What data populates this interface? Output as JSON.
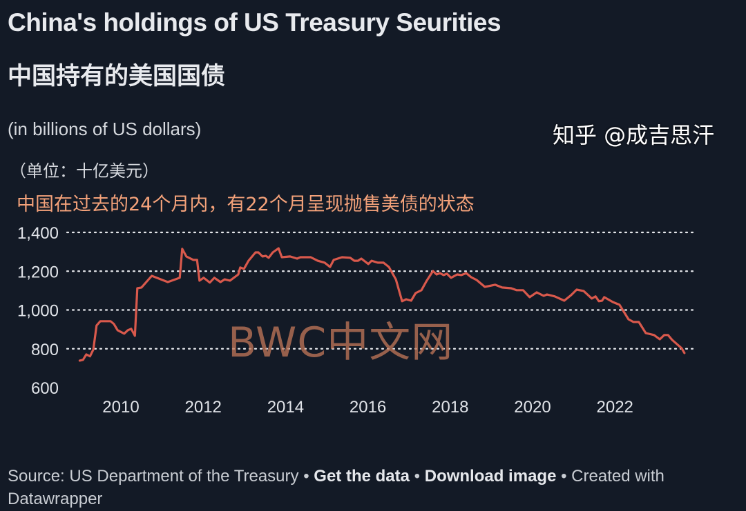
{
  "header": {
    "title": "China's holdings of US Treasury Seurities",
    "title_cn": "中国持有的美国国债",
    "subtitle": "(in billions of US dollars)",
    "unit_cn": "（单位：十亿美元）",
    "annotation_cn": "中国在过去的24个月内，有22个月呈现抛售美债的状态"
  },
  "footer": {
    "source": "Source: US Department of the Treasury",
    "sep": " • ",
    "get_data": "Get the data",
    "download": "Download image",
    "created": "Created with Datawrapper"
  },
  "watermarks": {
    "center": "BWC中文网",
    "corner": "知乎 @成吉思汗"
  },
  "colors": {
    "background": "#131a26",
    "line": "#d9594c",
    "annotation": "#f4a27a"
  },
  "chart_data": {
    "type": "line",
    "title": "China's holdings of US Treasury Seurities",
    "ylabel": "(in billions of US dollars)",
    "ylim": [
      600,
      1400
    ],
    "yticks": [
      "600",
      "800",
      "1,000",
      "1,200",
      "1,400"
    ],
    "yticks_values": [
      600,
      800,
      1000,
      1200,
      1400
    ],
    "xlim": [
      2008.5,
      2024.2
    ],
    "xticks": [
      "2010",
      "2012",
      "2014",
      "2016",
      "2018",
      "2020",
      "2022"
    ],
    "xticks_values": [
      2010,
      2012,
      2014,
      2016,
      2018,
      2020,
      2022
    ],
    "grid": "horizontal dotted",
    "series": [
      {
        "color": "#d9594c",
        "points": [
          [
            2009.0,
            739
          ],
          [
            2009.08,
            743
          ],
          [
            2009.16,
            771
          ],
          [
            2009.25,
            761
          ],
          [
            2009.33,
            796
          ],
          [
            2009.41,
            920
          ],
          [
            2009.5,
            942
          ],
          [
            2009.75,
            942
          ],
          [
            2009.83,
            928
          ],
          [
            2009.92,
            896
          ],
          [
            2010.08,
            878
          ],
          [
            2010.17,
            896
          ],
          [
            2010.25,
            903
          ],
          [
            2010.34,
            867
          ],
          [
            2010.4,
            1112
          ],
          [
            2010.5,
            1116
          ],
          [
            2010.75,
            1176
          ],
          [
            2011.14,
            1144
          ],
          [
            2011.43,
            1166
          ],
          [
            2011.49,
            1315
          ],
          [
            2011.59,
            1276
          ],
          [
            2011.76,
            1258
          ],
          [
            2011.85,
            1258
          ],
          [
            2011.91,
            1151
          ],
          [
            2012.01,
            1166
          ],
          [
            2012.16,
            1141
          ],
          [
            2012.27,
            1166
          ],
          [
            2012.42,
            1144
          ],
          [
            2012.52,
            1158
          ],
          [
            2012.65,
            1151
          ],
          [
            2012.85,
            1183
          ],
          [
            2012.9,
            1219
          ],
          [
            2012.99,
            1212
          ],
          [
            2013.1,
            1254
          ],
          [
            2013.27,
            1297
          ],
          [
            2013.34,
            1297
          ],
          [
            2013.44,
            1276
          ],
          [
            2013.52,
            1279
          ],
          [
            2013.59,
            1269
          ],
          [
            2013.69,
            1297
          ],
          [
            2013.83,
            1318
          ],
          [
            2013.91,
            1272
          ],
          [
            2014.11,
            1276
          ],
          [
            2014.28,
            1265
          ],
          [
            2014.36,
            1272
          ],
          [
            2014.61,
            1272
          ],
          [
            2014.78,
            1254
          ],
          [
            2014.95,
            1244
          ],
          [
            2015.08,
            1222
          ],
          [
            2015.17,
            1258
          ],
          [
            2015.37,
            1272
          ],
          [
            2015.57,
            1269
          ],
          [
            2015.67,
            1254
          ],
          [
            2015.76,
            1254
          ],
          [
            2015.84,
            1265
          ],
          [
            2016.01,
            1237
          ],
          [
            2016.09,
            1254
          ],
          [
            2016.24,
            1244
          ],
          [
            2016.38,
            1244
          ],
          [
            2016.51,
            1222
          ],
          [
            2016.68,
            1158
          ],
          [
            2016.83,
            1045
          ],
          [
            2016.93,
            1055
          ],
          [
            2017.05,
            1048
          ],
          [
            2017.16,
            1087
          ],
          [
            2017.3,
            1102
          ],
          [
            2017.43,
            1151
          ],
          [
            2017.58,
            1201
          ],
          [
            2017.67,
            1183
          ],
          [
            2017.75,
            1190
          ],
          [
            2017.84,
            1180
          ],
          [
            2017.92,
            1187
          ],
          [
            2018.02,
            1166
          ],
          [
            2018.17,
            1183
          ],
          [
            2018.27,
            1180
          ],
          [
            2018.39,
            1190
          ],
          [
            2018.51,
            1169
          ],
          [
            2018.64,
            1155
          ],
          [
            2018.84,
            1119
          ],
          [
            2019.09,
            1130
          ],
          [
            2019.26,
            1116
          ],
          [
            2019.48,
            1112
          ],
          [
            2019.61,
            1102
          ],
          [
            2019.77,
            1102
          ],
          [
            2019.93,
            1066
          ],
          [
            2020.1,
            1091
          ],
          [
            2020.27,
            1073
          ],
          [
            2020.35,
            1080
          ],
          [
            2020.54,
            1070
          ],
          [
            2020.77,
            1048
          ],
          [
            2020.94,
            1077
          ],
          [
            2021.07,
            1105
          ],
          [
            2021.24,
            1098
          ],
          [
            2021.44,
            1059
          ],
          [
            2021.53,
            1070
          ],
          [
            2021.61,
            1045
          ],
          [
            2021.69,
            1048
          ],
          [
            2021.74,
            1066
          ],
          [
            2021.95,
            1041
          ],
          [
            2022.11,
            1027
          ],
          [
            2022.33,
            952
          ],
          [
            2022.45,
            938
          ],
          [
            2022.58,
            938
          ],
          [
            2022.75,
            881
          ],
          [
            2022.95,
            871
          ],
          [
            2023.09,
            849
          ],
          [
            2023.2,
            871
          ],
          [
            2023.29,
            871
          ],
          [
            2023.39,
            846
          ],
          [
            2023.62,
            803
          ],
          [
            2023.69,
            778
          ]
        ]
      }
    ]
  }
}
